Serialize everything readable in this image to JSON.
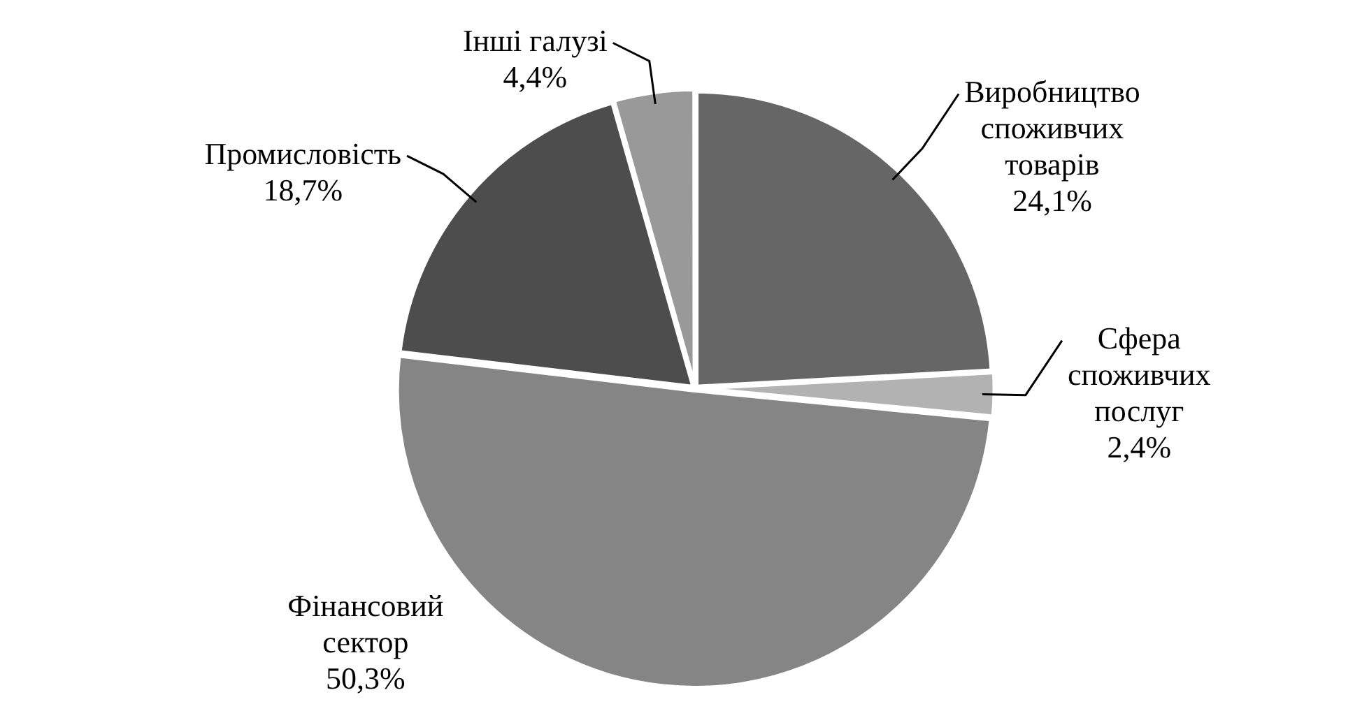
{
  "chart_data": {
    "type": "pie",
    "categories": [
      "Виробництво споживчих товарів",
      "Сфера споживчих послуг",
      "Фінансовий сектор",
      "Промисловість",
      "Інші галузі"
    ],
    "values": [
      24.1,
      2.4,
      50.3,
      18.7,
      4.4
    ],
    "value_labels": [
      "24,1%",
      "2,4%",
      "50,3%",
      "18,7%",
      "4,4%"
    ],
    "colors": [
      "#666666",
      "#b2b2b2",
      "#858585",
      "#4d4d4d",
      "#999999"
    ],
    "legend": false
  }
}
